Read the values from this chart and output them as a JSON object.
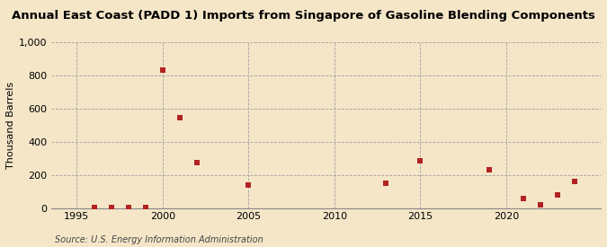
{
  "title": "Annual East Coast (PADD 1) Imports from Singapore of Gasoline Blending Components",
  "ylabel": "Thousand Barrels",
  "source": "Source: U.S. Energy Information Administration",
  "background_color": "#f5e6c8",
  "plot_bg_color": "#f5e6c8",
  "point_color": "#b22222",
  "marker": "s",
  "marker_size": 4,
  "xlim": [
    1993.5,
    2025.5
  ],
  "ylim": [
    0,
    1000
  ],
  "yticks": [
    0,
    200,
    400,
    600,
    800,
    1000
  ],
  "ytick_labels": [
    "0",
    "200",
    "400",
    "600",
    "800",
    "1,000"
  ],
  "xticks": [
    1995,
    2000,
    2005,
    2010,
    2015,
    2020
  ],
  "data": {
    "years": [
      1996,
      1997,
      1998,
      1999,
      2000,
      2001,
      2002,
      2005,
      2013,
      2015,
      2019,
      2021,
      2022,
      2023,
      2024
    ],
    "values": [
      5,
      5,
      5,
      5,
      830,
      545,
      275,
      140,
      150,
      285,
      230,
      60,
      20,
      80,
      160
    ]
  },
  "title_fontsize": 9.5,
  "tick_fontsize": 8,
  "ylabel_fontsize": 8,
  "source_fontsize": 7
}
